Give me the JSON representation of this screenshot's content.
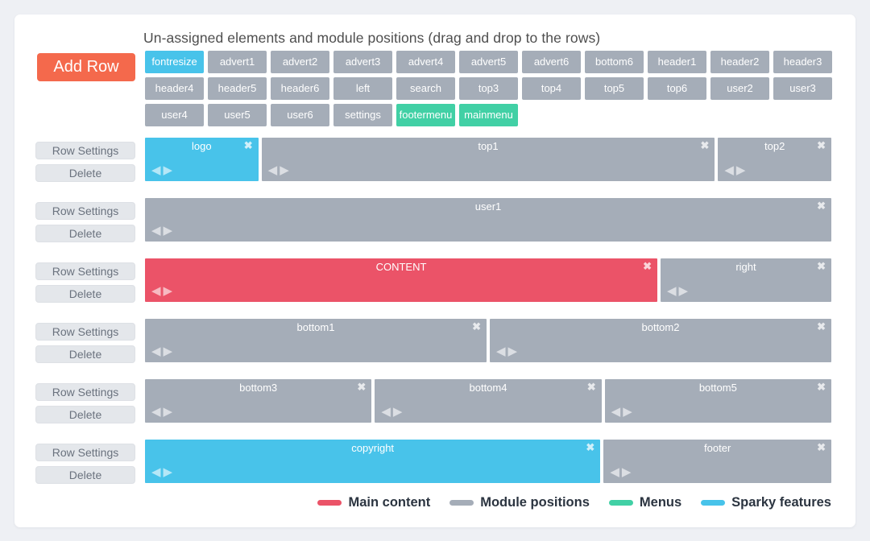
{
  "header": {
    "title": "Un-assigned elements and module positions (drag and drop to the rows)",
    "add_row_label": "Add Row"
  },
  "row_controls": {
    "settings_label": "Row Settings",
    "delete_label": "Delete"
  },
  "unassigned": {
    "tiles": [
      {
        "label": "fontresize",
        "type": "sparky"
      },
      {
        "label": "advert1",
        "type": "module"
      },
      {
        "label": "advert2",
        "type": "module"
      },
      {
        "label": "advert3",
        "type": "module"
      },
      {
        "label": "advert4",
        "type": "module"
      },
      {
        "label": "advert5",
        "type": "module"
      },
      {
        "label": "advert6",
        "type": "module"
      },
      {
        "label": "bottom6",
        "type": "module"
      },
      {
        "label": "header1",
        "type": "module"
      },
      {
        "label": "header2",
        "type": "module"
      },
      {
        "label": "header3",
        "type": "module"
      },
      {
        "label": "header4",
        "type": "module"
      },
      {
        "label": "header5",
        "type": "module"
      },
      {
        "label": "header6",
        "type": "module"
      },
      {
        "label": "left",
        "type": "module"
      },
      {
        "label": "search",
        "type": "module"
      },
      {
        "label": "top3",
        "type": "module"
      },
      {
        "label": "top4",
        "type": "module"
      },
      {
        "label": "top5",
        "type": "module"
      },
      {
        "label": "top6",
        "type": "module"
      },
      {
        "label": "user2",
        "type": "module"
      },
      {
        "label": "user3",
        "type": "module"
      },
      {
        "label": "user4",
        "type": "module"
      },
      {
        "label": "user5",
        "type": "module"
      },
      {
        "label": "user6",
        "type": "module"
      },
      {
        "label": "settings",
        "type": "module"
      },
      {
        "label": "footermenu",
        "type": "menu"
      },
      {
        "label": "mainmenu",
        "type": "menu"
      }
    ]
  },
  "rows": [
    {
      "blocks": [
        {
          "label": "logo",
          "type": "sparky",
          "span": 2
        },
        {
          "label": "top1",
          "type": "module",
          "span": 8
        },
        {
          "label": "top2",
          "type": "module",
          "span": 2
        }
      ]
    },
    {
      "blocks": [
        {
          "label": "user1",
          "type": "module",
          "span": 12
        }
      ]
    },
    {
      "blocks": [
        {
          "label": "CONTENT",
          "type": "content",
          "span": 9
        },
        {
          "label": "right",
          "type": "module",
          "span": 3
        }
      ]
    },
    {
      "blocks": [
        {
          "label": "bottom1",
          "type": "module",
          "span": 6
        },
        {
          "label": "bottom2",
          "type": "module",
          "span": 6
        }
      ]
    },
    {
      "blocks": [
        {
          "label": "bottom3",
          "type": "module",
          "span": 4
        },
        {
          "label": "bottom4",
          "type": "module",
          "span": 4
        },
        {
          "label": "bottom5",
          "type": "module",
          "span": 4
        }
      ]
    },
    {
      "blocks": [
        {
          "label": "copyright",
          "type": "sparky",
          "span": 8
        },
        {
          "label": "footer",
          "type": "module",
          "span": 4
        }
      ]
    }
  ],
  "legend": {
    "items": [
      {
        "label": "Main content",
        "color": "#eb5368"
      },
      {
        "label": "Module positions",
        "color": "#a5adb8"
      },
      {
        "label": "Menus",
        "color": "#41d0a5"
      },
      {
        "label": "Sparky features",
        "color": "#48c3ea"
      }
    ]
  },
  "icons": {
    "close": "✖",
    "move_left": "◀",
    "move_right": "▶"
  },
  "colors": {
    "accent_orange": "#f4694c",
    "sparky_blue": "#48c3ea",
    "module_gray": "#a5adb8",
    "menu_green": "#41d0a5",
    "content_red": "#eb5368",
    "page_background": "#eef0f4",
    "panel_background": "#ffffff"
  }
}
